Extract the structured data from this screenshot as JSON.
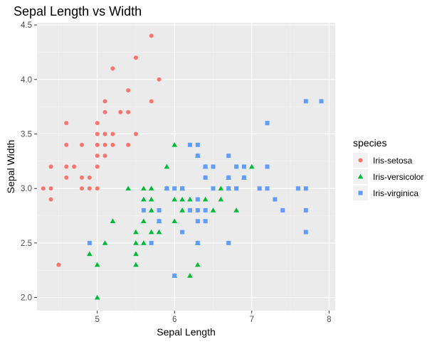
{
  "chart_data": {
    "type": "scatter",
    "title": "Sepal Length vs Width",
    "xlabel": "Sepal Length",
    "ylabel": "Sepal Width",
    "xlim": [
      4.22,
      8.08
    ],
    "ylim": [
      1.88,
      4.52
    ],
    "x_ticks": [
      5,
      6,
      7,
      8
    ],
    "y_ticks": [
      2.0,
      2.5,
      3.0,
      3.5,
      4.0,
      4.5
    ],
    "x_tick_labels": [
      "5",
      "6",
      "7",
      "8"
    ],
    "y_tick_labels": [
      "2.0",
      "2.5",
      "3.0",
      "3.5",
      "4.0",
      "4.5"
    ],
    "grid": true,
    "legend": {
      "title": "species",
      "placement": "right"
    },
    "series": [
      {
        "name": "Iris-setosa",
        "color": "#F8766D",
        "marker": "circle",
        "points": [
          [
            4.3,
            3.0
          ],
          [
            4.4,
            2.9
          ],
          [
            4.4,
            3.0
          ],
          [
            4.4,
            3.2
          ],
          [
            4.5,
            2.3
          ],
          [
            4.6,
            3.1
          ],
          [
            4.6,
            3.2
          ],
          [
            4.6,
            3.4
          ],
          [
            4.6,
            3.6
          ],
          [
            4.7,
            3.2
          ],
          [
            4.8,
            3.0
          ],
          [
            4.8,
            3.1
          ],
          [
            4.8,
            3.4
          ],
          [
            4.9,
            3.0
          ],
          [
            4.9,
            3.1
          ],
          [
            5.0,
            3.0
          ],
          [
            5.0,
            3.2
          ],
          [
            5.0,
            3.3
          ],
          [
            5.0,
            3.4
          ],
          [
            5.0,
            3.5
          ],
          [
            5.0,
            3.6
          ],
          [
            5.1,
            3.3
          ],
          [
            5.1,
            3.4
          ],
          [
            5.1,
            3.5
          ],
          [
            5.1,
            3.7
          ],
          [
            5.1,
            3.8
          ],
          [
            5.2,
            3.4
          ],
          [
            5.2,
            3.5
          ],
          [
            5.2,
            4.1
          ],
          [
            5.3,
            3.7
          ],
          [
            5.4,
            3.4
          ],
          [
            5.4,
            3.7
          ],
          [
            5.4,
            3.9
          ],
          [
            5.5,
            3.5
          ],
          [
            5.5,
            4.2
          ],
          [
            5.7,
            3.8
          ],
          [
            5.7,
            4.4
          ],
          [
            5.8,
            4.0
          ]
        ]
      },
      {
        "name": "Iris-versicolor",
        "color": "#00BA38",
        "marker": "triangle",
        "points": [
          [
            4.9,
            2.4
          ],
          [
            5.0,
            2.0
          ],
          [
            5.0,
            2.3
          ],
          [
            5.1,
            2.5
          ],
          [
            5.2,
            2.7
          ],
          [
            5.4,
            3.0
          ],
          [
            5.5,
            2.3
          ],
          [
            5.5,
            2.4
          ],
          [
            5.5,
            2.5
          ],
          [
            5.5,
            2.6
          ],
          [
            5.6,
            2.5
          ],
          [
            5.6,
            2.7
          ],
          [
            5.6,
            2.9
          ],
          [
            5.6,
            3.0
          ],
          [
            5.7,
            2.6
          ],
          [
            5.7,
            2.8
          ],
          [
            5.7,
            2.9
          ],
          [
            5.7,
            3.0
          ],
          [
            5.8,
            2.6
          ],
          [
            5.8,
            2.7
          ],
          [
            5.9,
            3.0
          ],
          [
            5.9,
            3.2
          ],
          [
            6.0,
            2.2
          ],
          [
            6.0,
            2.7
          ],
          [
            6.0,
            2.9
          ],
          [
            6.0,
            3.4
          ],
          [
            6.1,
            2.8
          ],
          [
            6.1,
            2.9
          ],
          [
            6.1,
            3.0
          ],
          [
            6.2,
            2.2
          ],
          [
            6.2,
            2.9
          ],
          [
            6.3,
            2.3
          ],
          [
            6.3,
            2.5
          ],
          [
            6.3,
            3.3
          ],
          [
            6.4,
            2.9
          ],
          [
            6.4,
            3.2
          ],
          [
            6.5,
            2.8
          ],
          [
            6.6,
            2.9
          ],
          [
            6.6,
            3.0
          ],
          [
            6.7,
            3.0
          ],
          [
            6.7,
            3.1
          ],
          [
            6.8,
            2.8
          ],
          [
            6.9,
            3.1
          ],
          [
            7.0,
            3.2
          ]
        ]
      },
      {
        "name": "Iris-virginica",
        "color": "#619CFF",
        "marker": "square",
        "points": [
          [
            4.9,
            2.5
          ],
          [
            5.6,
            2.8
          ],
          [
            5.7,
            2.5
          ],
          [
            5.8,
            2.7
          ],
          [
            5.8,
            2.8
          ],
          [
            5.9,
            3.0
          ],
          [
            6.0,
            2.2
          ],
          [
            6.0,
            3.0
          ],
          [
            6.1,
            2.6
          ],
          [
            6.1,
            3.0
          ],
          [
            6.2,
            2.8
          ],
          [
            6.2,
            3.4
          ],
          [
            6.3,
            2.5
          ],
          [
            6.3,
            2.7
          ],
          [
            6.3,
            2.8
          ],
          [
            6.3,
            2.9
          ],
          [
            6.3,
            3.3
          ],
          [
            6.3,
            3.4
          ],
          [
            6.4,
            2.7
          ],
          [
            6.4,
            2.8
          ],
          [
            6.4,
            3.1
          ],
          [
            6.4,
            3.2
          ],
          [
            6.5,
            3.0
          ],
          [
            6.5,
            3.2
          ],
          [
            6.7,
            2.5
          ],
          [
            6.7,
            3.0
          ],
          [
            6.7,
            3.1
          ],
          [
            6.7,
            3.3
          ],
          [
            6.8,
            3.0
          ],
          [
            6.8,
            3.2
          ],
          [
            6.9,
            3.1
          ],
          [
            6.9,
            3.2
          ],
          [
            7.1,
            3.0
          ],
          [
            7.2,
            3.0
          ],
          [
            7.2,
            3.2
          ],
          [
            7.2,
            3.6
          ],
          [
            7.3,
            2.9
          ],
          [
            7.4,
            2.8
          ],
          [
            7.6,
            3.0
          ],
          [
            7.7,
            2.6
          ],
          [
            7.7,
            2.8
          ],
          [
            7.7,
            3.0
          ],
          [
            7.7,
            3.8
          ],
          [
            7.9,
            3.8
          ]
        ]
      }
    ]
  }
}
